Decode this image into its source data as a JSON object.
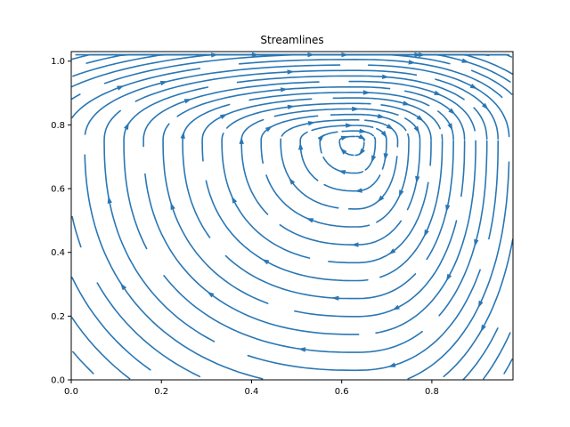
{
  "chart_data": {
    "type": "streamplot",
    "title": "Streamlines",
    "xlabel": "",
    "ylabel": "",
    "xlim": [
      0.0,
      0.98
    ],
    "ylim": [
      0.0,
      1.03
    ],
    "xticks": [
      0.0,
      0.2,
      0.4,
      0.6,
      0.8
    ],
    "xtick_labels": [
      "0.0",
      "0.2",
      "0.4",
      "0.6",
      "0.8"
    ],
    "yticks": [
      0.0,
      0.2,
      0.4,
      0.6,
      0.8,
      1.0
    ],
    "ytick_labels": [
      "0.0",
      "0.2",
      "0.4",
      "0.6",
      "0.8",
      "1.0"
    ],
    "grid": false,
    "line_color": "#2a77b4",
    "vortex_center": [
      0.63,
      0.75
    ],
    "rotation": "clockwise"
  }
}
